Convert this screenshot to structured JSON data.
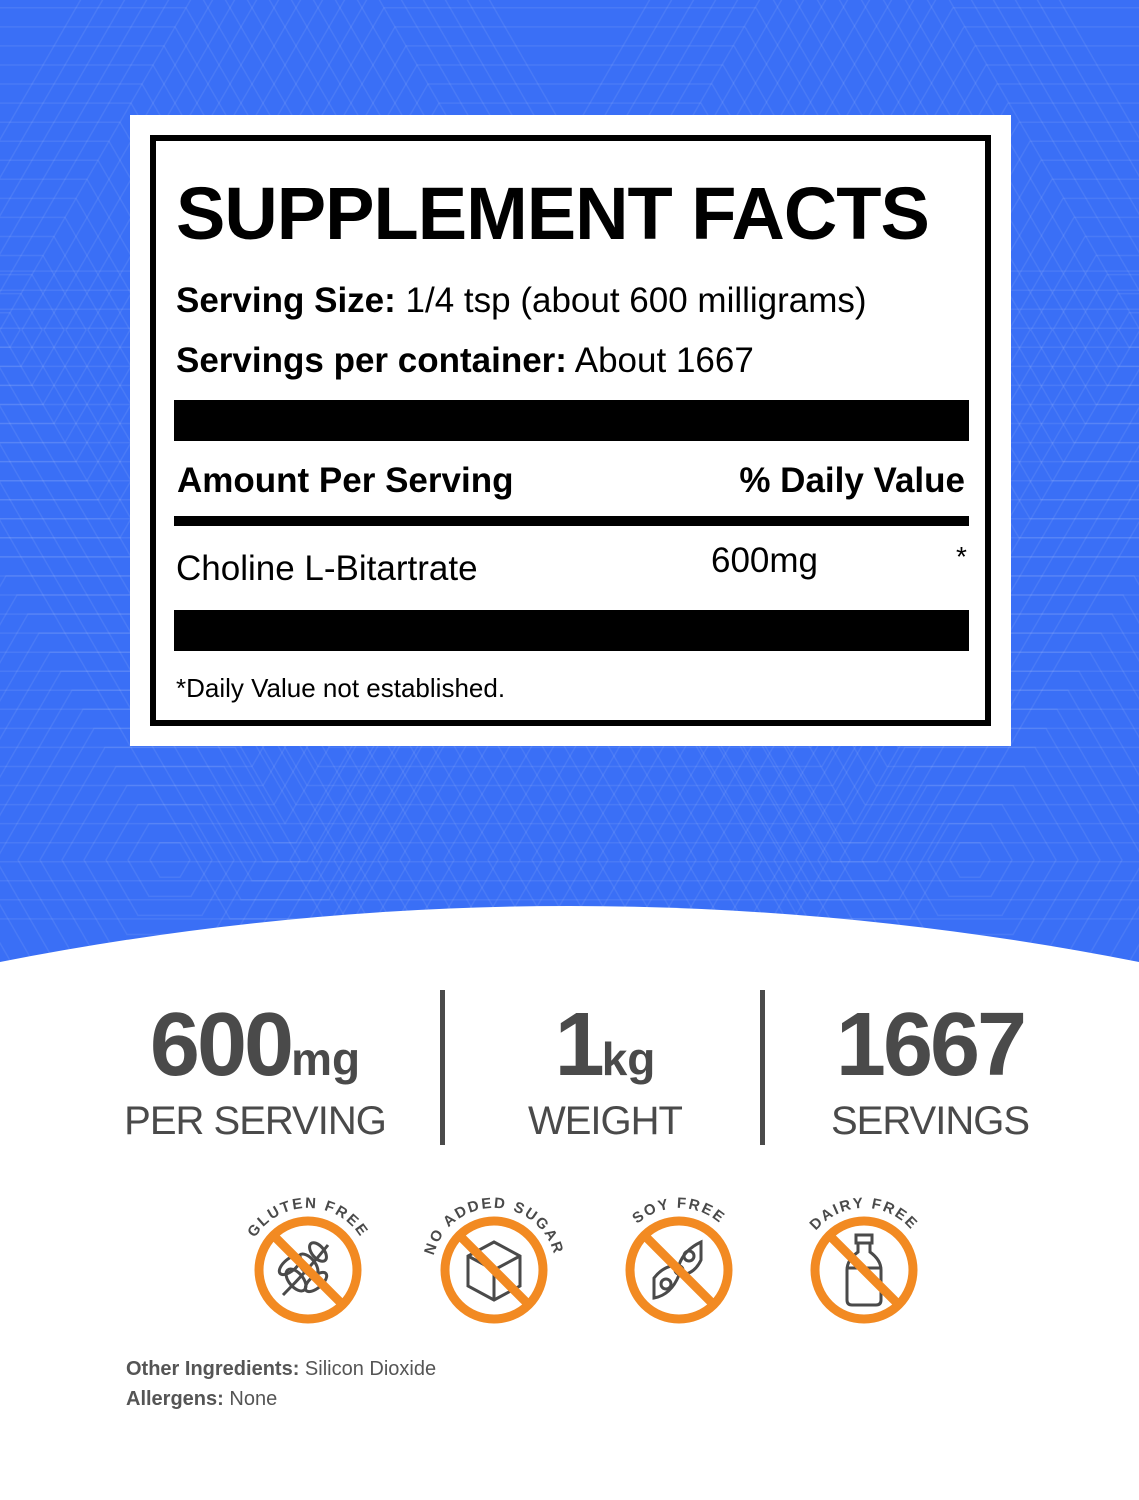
{
  "colors": {
    "background": "#3a6ff6",
    "badge": "#f28a22",
    "text_dark": "#4a4a4a"
  },
  "facts": {
    "title": "SUPPLEMENT FACTS",
    "serving_size_label": "Serving Size:",
    "serving_size_value": "1/4 tsp (about 600 milligrams)",
    "servings_label": "Servings per container:",
    "servings_value": "About 1667",
    "amount_header": "Amount Per Serving",
    "dv_header": "% Daily Value",
    "ingredient": "Choline L-Bitartrate",
    "ingredient_amount": "600mg",
    "ingredient_dv": "*",
    "footnote": "*Daily Value not established."
  },
  "stats": [
    {
      "value": "600",
      "unit": "mg",
      "label": "PER SERVING"
    },
    {
      "value": "1",
      "unit": "kg",
      "label": "WEIGHT"
    },
    {
      "value": "1667",
      "unit": "",
      "label": "SERVINGS"
    }
  ],
  "badges": [
    {
      "label": "GLUTEN FREE",
      "icon": "wheat-icon"
    },
    {
      "label": "NO ADDED SUGAR",
      "icon": "sugar-cube-icon"
    },
    {
      "label": "SOY FREE",
      "icon": "soybean-icon"
    },
    {
      "label": "DAIRY FREE",
      "icon": "milk-bottle-icon"
    }
  ],
  "other_ingredients": {
    "label": "Other Ingredients:",
    "value": "Silicon Dioxide"
  },
  "allergens": {
    "label": "Allergens:",
    "value": "None"
  }
}
